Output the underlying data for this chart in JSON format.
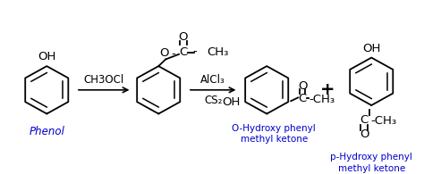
{
  "bg_color": "#ffffff",
  "text_color": "#000000",
  "blue_color": "#0000cd",
  "fig_width": 4.74,
  "fig_height": 1.95,
  "dpi": 100,
  "phenol_label": "Phenol",
  "reagent1": "CH3OCl",
  "reagent2_up": "AlCl₃",
  "reagent2_dn": "CS₂",
  "plus_sign": "+",
  "prod1_line1": "O-Hydroxy phenyl",
  "prod1_line2": "methyl ketone",
  "prod2_line1": "p-Hydroxy phenyl",
  "prod2_line2": "methyl ketone"
}
